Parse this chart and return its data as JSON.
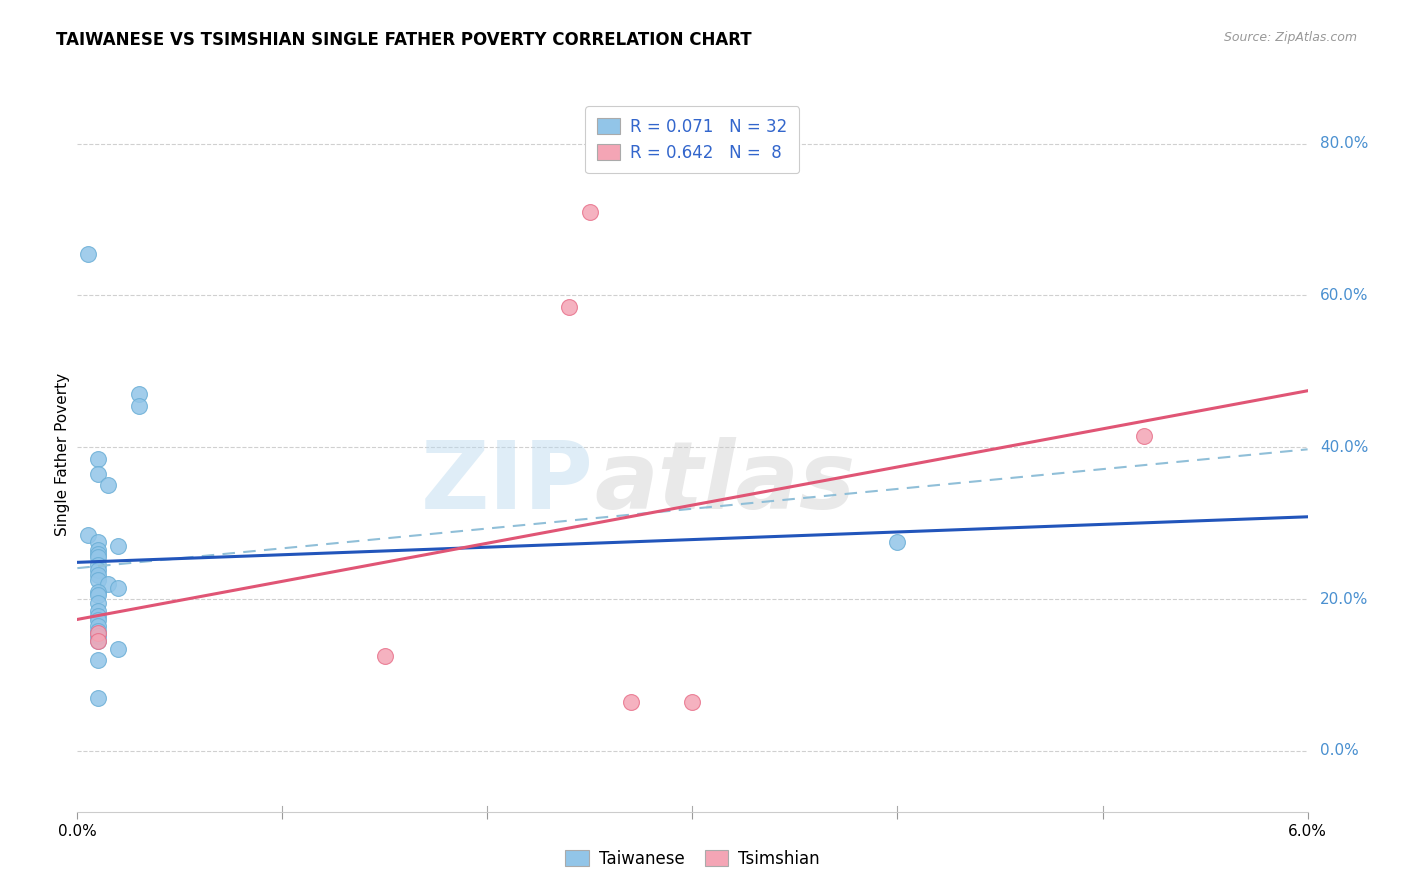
{
  "title": "TAIWANESE VS TSIMSHIAN SINGLE FATHER POVERTY CORRELATION CHART",
  "source": "Source: ZipAtlas.com",
  "ylabel": "Single Father Poverty",
  "ylabel_right_labels": [
    "80.0%",
    "60.0%",
    "40.0%",
    "20.0%",
    "0.0%"
  ],
  "ylabel_right_values": [
    0.8,
    0.6,
    0.4,
    0.2,
    0.0
  ],
  "xmin": 0.0,
  "xmax": 0.06,
  "ymin": -0.08,
  "ymax": 0.86,
  "watermark_zip": "ZIP",
  "watermark_atlas": "atlas",
  "taiwanese_points": [
    [
      0.0005,
      0.655
    ],
    [
      0.003,
      0.47
    ],
    [
      0.003,
      0.455
    ],
    [
      0.001,
      0.385
    ],
    [
      0.001,
      0.365
    ],
    [
      0.0015,
      0.35
    ],
    [
      0.0005,
      0.285
    ],
    [
      0.001,
      0.275
    ],
    [
      0.002,
      0.27
    ],
    [
      0.001,
      0.265
    ],
    [
      0.001,
      0.26
    ],
    [
      0.001,
      0.255
    ],
    [
      0.001,
      0.245
    ],
    [
      0.001,
      0.238
    ],
    [
      0.001,
      0.232
    ],
    [
      0.001,
      0.225
    ],
    [
      0.0015,
      0.22
    ],
    [
      0.002,
      0.215
    ],
    [
      0.001,
      0.21
    ],
    [
      0.001,
      0.205
    ],
    [
      0.001,
      0.195
    ],
    [
      0.001,
      0.185
    ],
    [
      0.001,
      0.178
    ],
    [
      0.001,
      0.172
    ],
    [
      0.001,
      0.165
    ],
    [
      0.001,
      0.158
    ],
    [
      0.001,
      0.152
    ],
    [
      0.001,
      0.145
    ],
    [
      0.002,
      0.135
    ],
    [
      0.001,
      0.12
    ],
    [
      0.001,
      0.07
    ],
    [
      0.04,
      0.275
    ]
  ],
  "tsimshian_points": [
    [
      0.025,
      0.71
    ],
    [
      0.024,
      0.585
    ],
    [
      0.001,
      0.155
    ],
    [
      0.001,
      0.145
    ],
    [
      0.015,
      0.125
    ],
    [
      0.027,
      0.065
    ],
    [
      0.03,
      0.065
    ],
    [
      0.052,
      0.415
    ]
  ],
  "taiwanese_color": "#92c5e8",
  "taiwanese_edge_color": "#6aaed6",
  "tsimshian_color": "#f4a5b5",
  "tsimshian_edge_color": "#e8708a",
  "taiwanese_R": 0.071,
  "taiwanese_N": 32,
  "tsimshian_R": 0.642,
  "tsimshian_N": 8,
  "trend_taiwanese_color": "#2255bb",
  "trend_tsimshian_color": "#e05575",
  "trend_dashed_color": "#90bfd8",
  "background_color": "#ffffff",
  "grid_color": "#d0d0d0",
  "title_fontsize": 12,
  "axis_fontsize": 11,
  "legend_fontsize": 12,
  "right_label_color": "#4a90d0"
}
